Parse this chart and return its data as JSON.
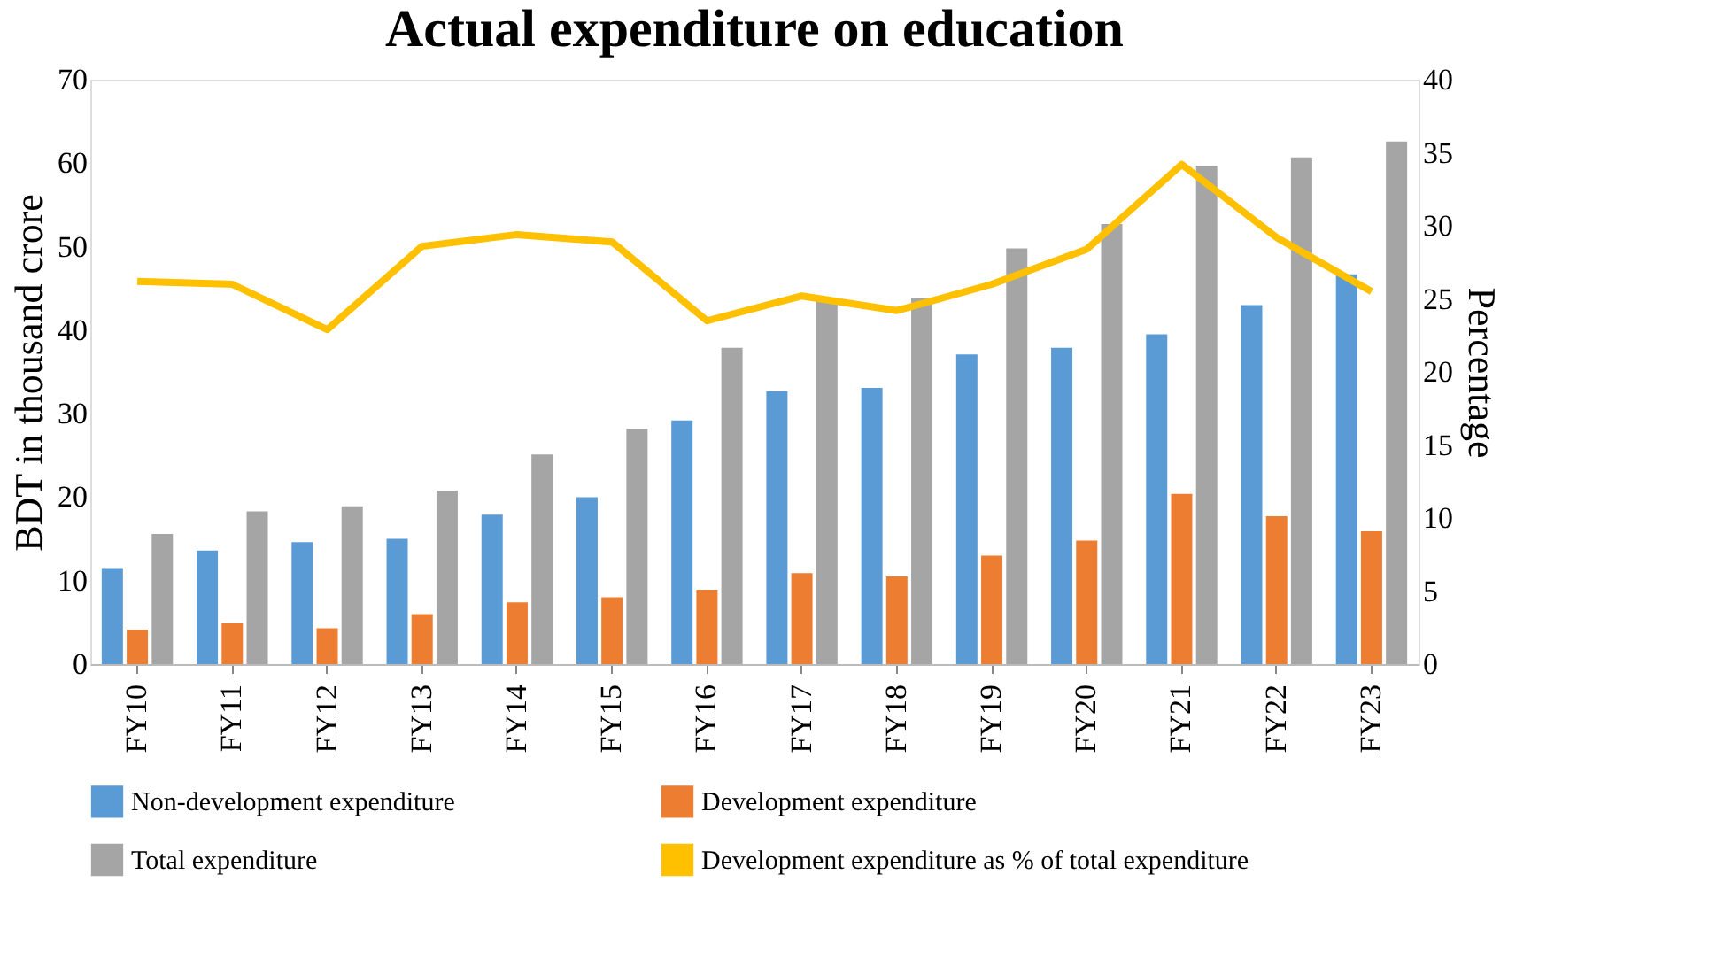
{
  "chart_data": {
    "type": "bar",
    "title": "Actual expenditure on education",
    "ylabel": "BDT in thousand crore",
    "y2label": "Percentage",
    "categories": [
      "FY10",
      "FY11",
      "FY12",
      "FY13",
      "FY14",
      "FY15",
      "FY16",
      "FY17",
      "FY18",
      "FY19",
      "FY20",
      "FY21",
      "FY22",
      "FY23"
    ],
    "series": [
      {
        "name": "Non-development expenditure",
        "color": "#5b9bd5",
        "values": [
          11.5,
          13.6,
          14.6,
          15.0,
          17.9,
          20.0,
          29.2,
          32.7,
          33.1,
          37.1,
          37.9,
          39.5,
          43.0,
          46.7
        ]
      },
      {
        "name": "Development expenditure",
        "color": "#ed7d31",
        "values": [
          4.1,
          4.9,
          4.3,
          6.0,
          7.4,
          8.0,
          8.9,
          10.9,
          10.5,
          13.0,
          14.8,
          20.4,
          17.7,
          15.9
        ]
      },
      {
        "name": "Total expenditure",
        "color": "#a5a5a5",
        "values": [
          15.6,
          18.3,
          18.9,
          20.8,
          25.1,
          28.2,
          37.9,
          43.6,
          43.9,
          49.8,
          52.7,
          59.7,
          60.7,
          62.6
        ]
      },
      {
        "name": "Development expenditure as % of total expenditure",
        "type": "line",
        "axis": "y2",
        "color": "#ffc000",
        "values": [
          26.2,
          26.0,
          22.9,
          28.6,
          29.4,
          28.9,
          23.5,
          25.2,
          24.2,
          26.0,
          28.4,
          34.2,
          29.2,
          25.5
        ]
      }
    ],
    "ylim": [
      0,
      70
    ],
    "yticks": [
      0,
      10,
      20,
      30,
      40,
      50,
      60,
      70
    ],
    "y2lim": [
      0,
      40
    ],
    "y2ticks": [
      0,
      5,
      10,
      15,
      20,
      25,
      30,
      35,
      40
    ],
    "grid": false,
    "legend": "bottom",
    "marker": "none",
    "line_style": "solid"
  }
}
